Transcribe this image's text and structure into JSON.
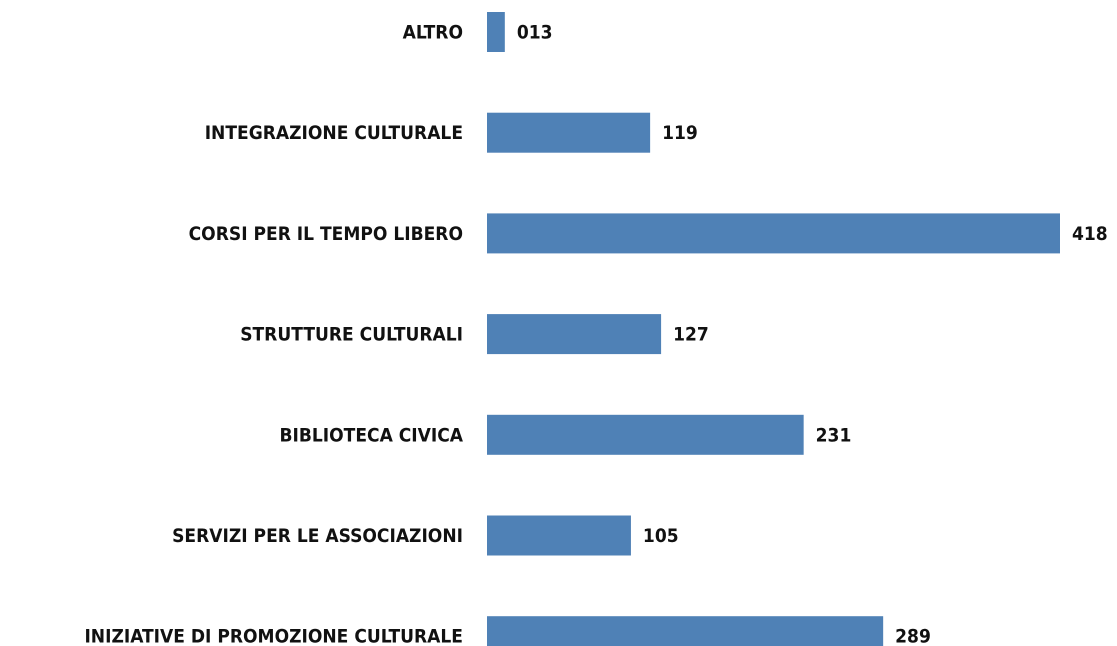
{
  "chart_data": {
    "type": "barh",
    "categories": [
      "ALTRO",
      "INTEGRAZIONE CULTURALE",
      "CORSI PER IL TEMPO LIBERO",
      "STRUTTURE CULTURALI",
      "BIBLIOTECA CIVICA",
      "SERVIZI PER LE ASSOCIAZIONI",
      "INIZIATIVE DI PROMOZIONE CULTURALE"
    ],
    "values": [
      13,
      119,
      418,
      127,
      231,
      105,
      289
    ],
    "value_labels": [
      "013",
      "119",
      "418",
      "127",
      "231",
      "105",
      "289"
    ],
    "color": "#4f81b6"
  }
}
